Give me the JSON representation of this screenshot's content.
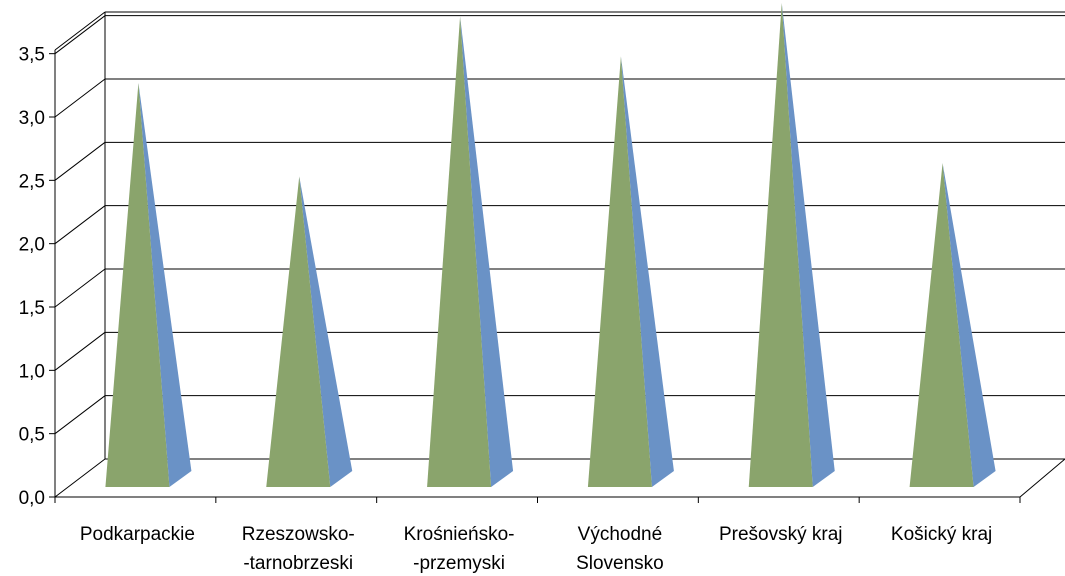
{
  "chart_data": {
    "type": "bar",
    "shape": "pyramid-3d",
    "categories": [
      [
        "Podkarpackie"
      ],
      [
        "Rzeszowsko-",
        "-tarnobrzeski"
      ],
      [
        "Krośnieńsko-",
        "-przemyski"
      ],
      [
        "Východné",
        "Slovensko"
      ],
      [
        "Prešovský kraj"
      ],
      [
        "Košický kraj"
      ]
    ],
    "values": [
      3.0,
      2.3,
      3.5,
      3.2,
      3.6,
      2.4
    ],
    "yticks": [
      "0,0",
      "0,5",
      "1,0",
      "1,5",
      "2,0",
      "2,5",
      "3,0",
      "3,5"
    ],
    "ylim": [
      0,
      3.5
    ],
    "grid": true,
    "colors": {
      "front": "#8aa46c",
      "side": "#6a92c6",
      "grid": "#000000"
    }
  }
}
